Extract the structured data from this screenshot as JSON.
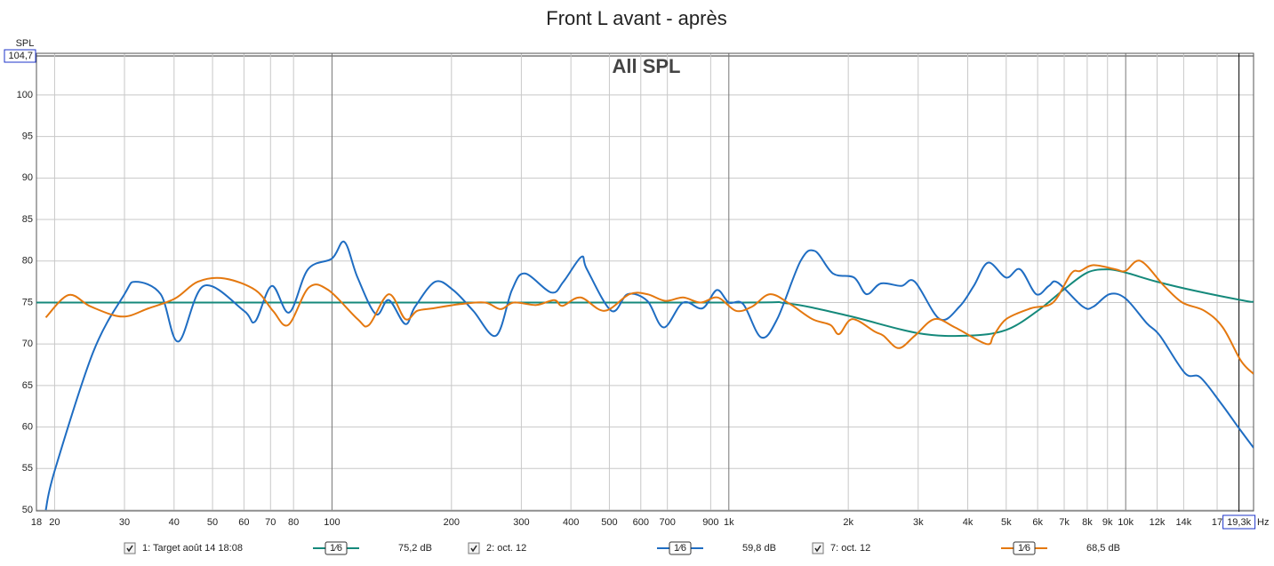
{
  "chart_data": {
    "type": "line",
    "title": "Front L avant - après",
    "subtitle": "All SPL",
    "y_label": "SPL",
    "x_label": "Hz",
    "xscale": "log",
    "grid": true,
    "xlim": [
      18,
      21000
    ],
    "ylim": [
      50,
      104.7
    ],
    "xticks": [
      18,
      20,
      30,
      40,
      50,
      60,
      70,
      80,
      100,
      200,
      300,
      400,
      500,
      600,
      700,
      900,
      {
        "value": 1000,
        "label": "1k"
      },
      {
        "value": 2000,
        "label": "2k"
      },
      {
        "value": 3000,
        "label": "3k"
      },
      {
        "value": 4000,
        "label": "4k"
      },
      {
        "value": 5000,
        "label": "5k"
      },
      {
        "value": 6000,
        "label": "6k"
      },
      {
        "value": 7000,
        "label": "7k"
      },
      {
        "value": 8000,
        "label": "8k"
      },
      {
        "value": 9000,
        "label": "9k"
      },
      {
        "value": 10000,
        "label": "10k"
      },
      {
        "value": 12000,
        "label": "12k"
      },
      {
        "value": 14000,
        "label": "14k"
      },
      {
        "value": 17000,
        "label": "17"
      }
    ],
    "yticks": [
      50,
      55,
      60,
      65,
      70,
      75,
      80,
      85,
      90,
      95,
      100,
      {
        "value": 104.7,
        "label": "104,7"
      }
    ],
    "cursor": {
      "value": 19300,
      "label": "19,3k"
    },
    "series": [
      {
        "name": "1: Target août 14 18:08",
        "color": "#15897b",
        "smoothing": "1⁄6",
        "readout": "75,2 dB",
        "x": [
          18,
          100,
          1000,
          1400,
          2000,
          3000,
          4000,
          5000,
          6000,
          7000,
          8000,
          9000,
          10000,
          12000,
          15000,
          20000,
          21000
        ],
        "values": [
          75,
          75,
          75,
          74.9,
          73.4,
          71.3,
          71.0,
          71.7,
          74,
          76.6,
          78.6,
          79,
          78.6,
          77.5,
          76.4,
          75.2,
          75.1
        ]
      },
      {
        "name": "2: oct. 12",
        "color": "#1f6dc2",
        "smoothing": "1⁄6",
        "readout": "59,8 dB",
        "x": [
          19,
          20,
          25,
          30,
          32,
          37,
          41,
          47.5,
          60,
          64,
          70.5,
          78,
          87,
          100,
          107.5,
          116,
          129,
          139,
          153,
          162,
          182,
          202,
          227,
          259,
          284,
          306,
          357,
          383,
          425,
          439,
          506,
          556,
          623,
          685,
          767,
          858,
          933,
          1000,
          1087,
          1206,
          1324,
          1516,
          1648,
          1830,
          2068,
          2223,
          2417,
          2720,
          2942,
          3400,
          3812,
          4142,
          4500,
          5000,
          5420,
          5950,
          6400,
          6740,
          7800,
          8290,
          9100,
          9980,
          11300,
          12200,
          14100,
          15400,
          17300,
          19200,
          21000
        ],
        "values": [
          50,
          54.7,
          69,
          76,
          77.5,
          76,
          70.3,
          77,
          74,
          72.7,
          77,
          73.8,
          79,
          80.3,
          82.3,
          78,
          73.6,
          75.3,
          72.4,
          74.5,
          77.5,
          76.5,
          74,
          71,
          76.5,
          78.5,
          76.2,
          77.5,
          80.5,
          79,
          74,
          76,
          75.2,
          72,
          75,
          74.3,
          76.5,
          75,
          74.8,
          70.8,
          73,
          80,
          81.2,
          78.5,
          78,
          76,
          77.3,
          77,
          77.5,
          73,
          74.5,
          77,
          79.8,
          78,
          79,
          76,
          77,
          77.4,
          74.5,
          74.5,
          76,
          75.5,
          72.5,
          71,
          66.5,
          66,
          63,
          60,
          57.5
        ]
      },
      {
        "name": "7: oct. 12",
        "color": "#e4780f",
        "smoothing": "1⁄6",
        "readout": "68,5 dB",
        "x": [
          19,
          21.7,
          24.7,
          29.6,
          34.5,
          40.3,
          45.9,
          53.5,
          64.1,
          71,
          77.6,
          87.4,
          97.9,
          116,
          124,
          139,
          153,
          164,
          180,
          210,
          243,
          266,
          287,
          327,
          363,
          381,
          423,
          486,
          562,
          623,
          692,
          767,
          849,
          938,
          1042,
          1144,
          1270,
          1428,
          1623,
          1803,
          1896,
          2047,
          2330,
          2453,
          2678,
          2942,
          3300,
          3715,
          4459,
          4644,
          5000,
          5769,
          6560,
          7290,
          7680,
          8290,
          9430,
          9980,
          10900,
          12500,
          13890,
          15800,
          17570,
          19510,
          21000
        ],
        "values": [
          73.2,
          75.9,
          74.5,
          73.3,
          74.3,
          75.5,
          77.5,
          77.9,
          76.5,
          74,
          72.3,
          76.8,
          76.5,
          73,
          72.3,
          76,
          73,
          74,
          74.3,
          74.8,
          75,
          74.2,
          75,
          74.7,
          75.3,
          74.6,
          75.6,
          74,
          76,
          76,
          75.2,
          75.6,
          75,
          75.6,
          74,
          74.5,
          76,
          74.8,
          73,
          72.3,
          71.2,
          73,
          71.5,
          71,
          69.5,
          71,
          73,
          72,
          70,
          71,
          73,
          74.3,
          75,
          78.5,
          78.8,
          79.5,
          79,
          78.8,
          80,
          77,
          75,
          74,
          72,
          68,
          66.4
        ]
      }
    ]
  }
}
